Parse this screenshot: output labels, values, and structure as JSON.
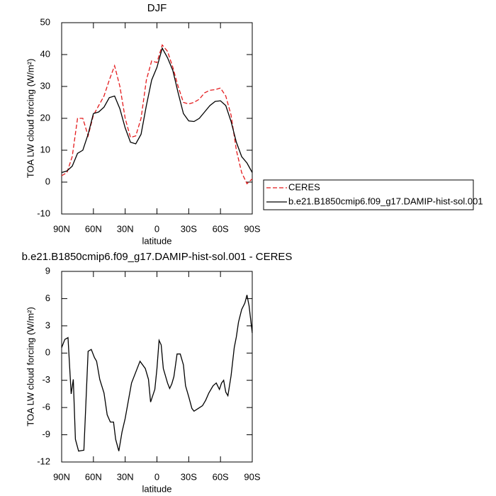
{
  "chart_data": [
    {
      "type": "line",
      "title": "DJF",
      "xlabel": "latitude",
      "ylabel": "TOA LW cloud forcing (W/m²)",
      "x": [
        90,
        85,
        80,
        75,
        70,
        65,
        60,
        55,
        50,
        45,
        40,
        35,
        30,
        25,
        20,
        15,
        10,
        5,
        0,
        -5,
        -10,
        -15,
        -20,
        -25,
        -30,
        -35,
        -40,
        -45,
        -50,
        -55,
        -60,
        -65,
        -70,
        -75,
        -80,
        -85,
        -90
      ],
      "series": [
        {
          "name": "CERES",
          "color": "#e41a1c",
          "dash": true,
          "values": [
            2,
            3,
            8,
            20,
            20,
            14.5,
            21,
            24,
            27,
            32,
            36.5,
            30,
            20,
            14,
            14.5,
            20,
            32,
            38,
            37.5,
            43,
            41,
            36,
            30,
            25,
            24.5,
            25,
            26,
            28,
            28.8,
            29,
            29.5,
            27,
            21,
            10,
            3,
            -0.5,
            1
          ]
        },
        {
          "name": "b.e21.B1850cmip6.f09_g17.DAMIP-hist-sol.001",
          "color": "#000000",
          "dash": false,
          "values": [
            3,
            3.5,
            5,
            9,
            10,
            15,
            21.5,
            22,
            23.5,
            26.5,
            27,
            23,
            17,
            12.5,
            12,
            15,
            24,
            32,
            36,
            42,
            39,
            35,
            28,
            21.5,
            19.2,
            19,
            20,
            22,
            24,
            25.3,
            25.5,
            24,
            19,
            12.5,
            8,
            6,
            3
          ]
        }
      ],
      "xlim": [
        90,
        -90
      ],
      "xticks": [
        {
          "value": 90,
          "label": "90N"
        },
        {
          "value": 60,
          "label": "60N"
        },
        {
          "value": 30,
          "label": "30N"
        },
        0,
        {
          "value": -30,
          "label": "30S"
        },
        {
          "value": -60,
          "label": "60S"
        },
        {
          "value": -90,
          "label": "90S"
        }
      ],
      "ylim": [
        -10,
        50
      ],
      "yticks": [
        -10,
        0,
        10,
        20,
        30,
        40,
        50
      ],
      "legend": "right"
    },
    {
      "type": "line",
      "title": "b.e21.B1850cmip6.f09_g17.DAMIP-hist-sol.001 - CERES",
      "xlabel": "latitude",
      "ylabel": "TOA LW cloud forcing (W/m²)",
      "x": [
        90,
        87,
        84,
        81,
        79,
        77,
        74,
        69,
        65,
        62,
        59,
        57,
        54,
        50,
        47,
        44,
        41,
        39,
        36,
        33,
        30,
        24,
        20,
        16,
        11,
        8,
        6,
        2,
        0,
        -2,
        -4,
        -6,
        -10,
        -12,
        -14,
        -16,
        -19,
        -22,
        -25,
        -27,
        -30,
        -33,
        -35,
        -39,
        -43,
        -46,
        -49,
        -53,
        -56,
        -59,
        -61,
        -63,
        -65,
        -67,
        -70,
        -73,
        -75,
        -77,
        -80,
        -83,
        -85,
        -87,
        -90
      ],
      "values": [
        0.6,
        1.5,
        1.7,
        -4.5,
        -2.9,
        -9.5,
        -10.8,
        -10.7,
        0.2,
        0.4,
        -0.5,
        -0.9,
        -2.9,
        -4.4,
        -6.8,
        -7.6,
        -7.6,
        -9.5,
        -10.8,
        -8.7,
        -7.2,
        -3.3,
        -2.1,
        -0.9,
        -1.7,
        -2.9,
        -5.4,
        -4.0,
        -1.7,
        1.4,
        0.9,
        -1.7,
        -3.3,
        -3.9,
        -3.4,
        -2.6,
        -0.1,
        -0.1,
        -1.3,
        -3.6,
        -4.8,
        -6.1,
        -6.4,
        -6.1,
        -5.8,
        -5.2,
        -4.4,
        -3.6,
        -3.3,
        -4.0,
        -3.3,
        -3.0,
        -4.3,
        -4.7,
        -2.5,
        0.6,
        1.8,
        3.4,
        4.8,
        5.5,
        6.4,
        5.2,
        2.2
      ],
      "color": "#000000",
      "xlim": [
        90,
        -90
      ],
      "xticks": [
        {
          "value": 90,
          "label": "90N"
        },
        {
          "value": 60,
          "label": "60N"
        },
        {
          "value": 30,
          "label": "30N"
        },
        0,
        {
          "value": -30,
          "label": "30S"
        },
        {
          "value": -60,
          "label": "60S"
        },
        {
          "value": -90,
          "label": "90S"
        }
      ],
      "ylim": [
        -12,
        9
      ],
      "yticks": [
        -12,
        -9,
        -6,
        -3,
        0,
        3,
        6,
        9
      ]
    }
  ]
}
